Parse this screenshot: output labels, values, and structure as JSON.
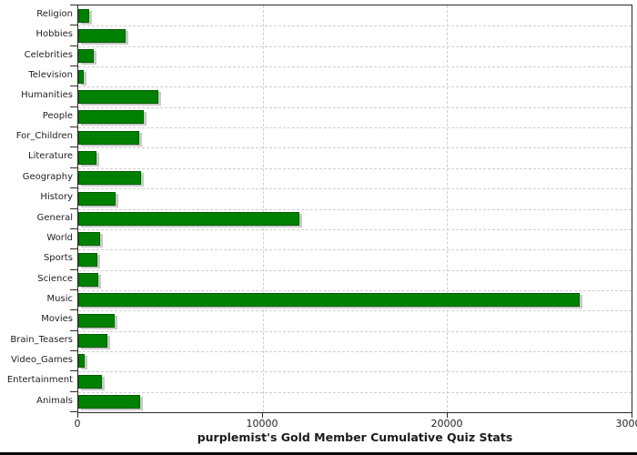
{
  "chart_data": {
    "type": "bar",
    "orientation": "horizontal",
    "title": "purplemist's Gold Member Cumulative Quiz Stats",
    "categories": [
      "Religion",
      "Hobbies",
      "Celebrities",
      "Television",
      "Humanities",
      "People",
      "For_Children",
      "Literature",
      "Geography",
      "History",
      "General",
      "World",
      "Sports",
      "Science",
      "Music",
      "Movies",
      "Brain_Teasers",
      "Video_Games",
      "Entertainment",
      "Animals"
    ],
    "values": [
      575,
      2550,
      820,
      300,
      4330,
      3560,
      3320,
      1000,
      3410,
      2020,
      12000,
      1170,
      1020,
      1080,
      27200,
      1990,
      1590,
      330,
      1280,
      3360
    ],
    "xlim": [
      0,
      30000
    ],
    "x_ticks": [
      0,
      10000,
      20000,
      30000
    ],
    "x_tick_labels": [
      "0",
      "10000",
      "20000",
      "30000"
    ],
    "xlabel": "",
    "ylabel": "",
    "grid": "dashed horizontal row separators + vertical at ticks",
    "legend": "none",
    "colors": {
      "bar_fill": "#008000",
      "bar_border": "#005e00",
      "bar_shadow": "#c9c9c9",
      "grid_line": "#cfcfcf",
      "axis_line": "#2b2b2b",
      "text": "#1f1f1f",
      "background": "#ffffff",
      "bottom_edge": "#0a0a0a"
    }
  }
}
